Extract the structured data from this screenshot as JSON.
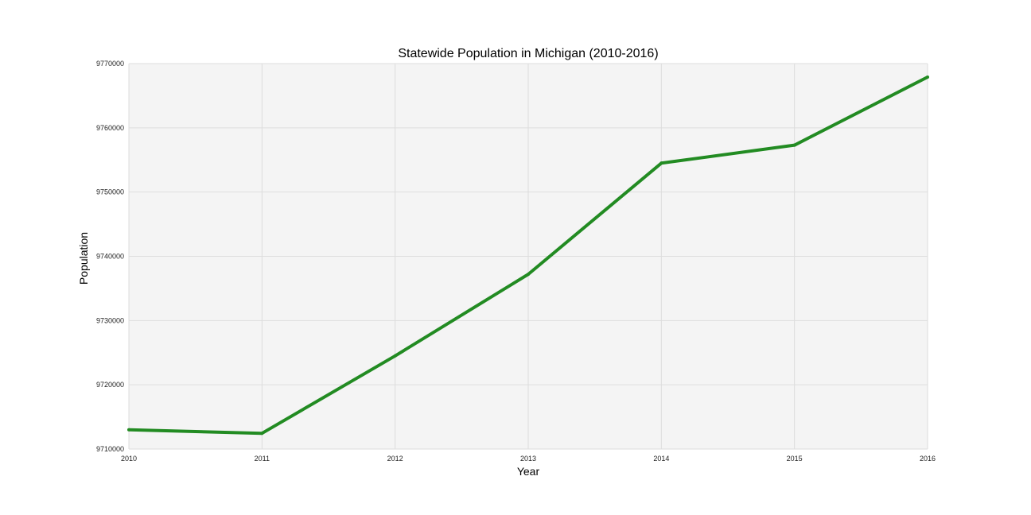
{
  "chart_data": {
    "type": "line",
    "title": "Statewide Population in Michigan (2010-2016)",
    "xlabel": "Year",
    "ylabel": "Population",
    "x": [
      2010,
      2011,
      2012,
      2013,
      2014,
      2015,
      2016
    ],
    "series": [
      {
        "values": [
          9713000,
          9712450,
          9724500,
          9737200,
          9754500,
          9757300,
          9767900
        ]
      }
    ],
    "xlim": [
      2010,
      2016
    ],
    "ylim": [
      9710000,
      9770000
    ],
    "xticks": [
      "2010",
      "2011",
      "2012",
      "2013",
      "2014",
      "2015",
      "2016"
    ],
    "yticks": [
      "9710000",
      "9720000",
      "9730000",
      "9740000",
      "9750000",
      "9760000",
      "9770000"
    ],
    "grid": true,
    "colors": {
      "line": "#228b22",
      "plot_background": "#f4f4f4",
      "grid": "#dddddd"
    }
  }
}
